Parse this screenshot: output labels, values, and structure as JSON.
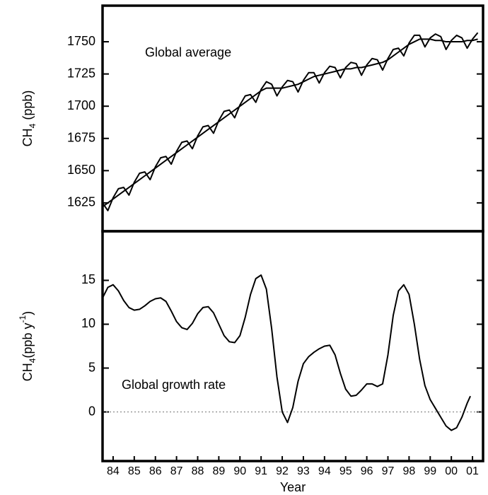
{
  "chart_data": [
    {
      "type": "line",
      "annotation": "Global average",
      "ylabel_parts": [
        {
          "text": "CH"
        },
        {
          "text": "4",
          "sub": true
        },
        {
          "text": " (ppb)"
        }
      ],
      "xlim": [
        1984,
        2002
      ],
      "ylim": [
        1603,
        1778
      ],
      "yticks": [
        1625,
        1650,
        1675,
        1700,
        1725,
        1750
      ],
      "x": [
        1984,
        1984.25,
        1984.5,
        1984.75,
        1985,
        1985.25,
        1985.5,
        1985.75,
        1986,
        1986.25,
        1986.5,
        1986.75,
        1987,
        1987.25,
        1987.5,
        1987.75,
        1988,
        1988.25,
        1988.5,
        1988.75,
        1989,
        1989.25,
        1989.5,
        1989.75,
        1990,
        1990.25,
        1990.5,
        1990.75,
        1991,
        1991.25,
        1991.5,
        1991.75,
        1992,
        1992.25,
        1992.5,
        1992.75,
        1993,
        1993.25,
        1993.5,
        1993.75,
        1994,
        1994.25,
        1994.5,
        1994.75,
        1995,
        1995.25,
        1995.5,
        1995.75,
        1996,
        1996.25,
        1996.5,
        1996.75,
        1997,
        1997.25,
        1997.5,
        1997.75,
        1998,
        1998.25,
        1998.5,
        1998.75,
        1999,
        1999.25,
        1999.5,
        1999.75,
        2000,
        2000.25,
        2000.5,
        2000.75,
        2001,
        2001.25,
        2001.5,
        2001.75
      ],
      "series": [
        {
          "color": "#000000",
          "values": [
            1625,
            1619,
            1629,
            1636,
            1637,
            1631,
            1641,
            1648,
            1649,
            1643,
            1653,
            1660,
            1661,
            1655,
            1665,
            1672,
            1673,
            1667,
            1677,
            1684,
            1685,
            1679,
            1689,
            1696,
            1697,
            1691,
            1701,
            1708,
            1709,
            1703,
            1713,
            1719,
            1717,
            1708,
            1715,
            1720,
            1719,
            1711,
            1720,
            1726,
            1726,
            1718,
            1726,
            1731,
            1730,
            1722,
            1730,
            1734,
            1733,
            1724,
            1732,
            1737,
            1736,
            1728,
            1737,
            1744,
            1745,
            1739,
            1749,
            1755,
            1755,
            1746,
            1753,
            1756,
            1754,
            1744,
            1751,
            1755,
            1753,
            1745,
            1752,
            1757
          ]
        },
        {
          "color": "#000000",
          "values": [
            1622,
            1625,
            1628,
            1631,
            1634,
            1637,
            1640,
            1643,
            1646,
            1649,
            1652,
            1655,
            1658,
            1661,
            1664,
            1667,
            1670,
            1673,
            1676,
            1679,
            1682,
            1685,
            1688,
            1691,
            1694,
            1697,
            1700,
            1703,
            1706,
            1709,
            1712,
            1714,
            1714,
            1714,
            1714,
            1715,
            1716,
            1717,
            1719,
            1721,
            1723,
            1724,
            1725,
            1726,
            1727,
            1728,
            1729,
            1729,
            1730,
            1730,
            1731,
            1732,
            1733,
            1734,
            1736,
            1739,
            1742,
            1745,
            1748,
            1750,
            1752,
            1752,
            1752,
            1751,
            1751,
            1750,
            1750,
            1750,
            1750,
            1751,
            1751,
            1752
          ]
        }
      ]
    },
    {
      "type": "line",
      "annotation": "Global growth rate",
      "ylabel_parts": [
        {
          "text": "CH"
        },
        {
          "text": "4",
          "sub": true
        },
        {
          "text": "(ppb y"
        },
        {
          "text": "-1",
          "sup": true
        },
        {
          "text": ")"
        }
      ],
      "xlabel": "Year",
      "xlim": [
        1984,
        2002
      ],
      "ylim": [
        -5.6,
        20.6
      ],
      "yticks": [
        0,
        5,
        10,
        15
      ],
      "zero_line": true,
      "xticks": [
        {
          "value": 1984.5,
          "label": "84"
        },
        {
          "value": 1985.5,
          "label": "85"
        },
        {
          "value": 1986.5,
          "label": "86"
        },
        {
          "value": 1987.5,
          "label": "87"
        },
        {
          "value": 1988.5,
          "label": "88"
        },
        {
          "value": 1989.5,
          "label": "89"
        },
        {
          "value": 1990.5,
          "label": "90"
        },
        {
          "value": 1991.5,
          "label": "91"
        },
        {
          "value": 1992.5,
          "label": "92"
        },
        {
          "value": 1993.5,
          "label": "93"
        },
        {
          "value": 1994.5,
          "label": "94"
        },
        {
          "value": 1995.5,
          "label": "95"
        },
        {
          "value": 1996.5,
          "label": "96"
        },
        {
          "value": 1997.5,
          "label": "97"
        },
        {
          "value": 1998.5,
          "label": "98"
        },
        {
          "value": 1999.5,
          "label": "99"
        },
        {
          "value": 2000.5,
          "label": "00"
        },
        {
          "value": 2001.5,
          "label": "01"
        }
      ],
      "x": [
        1984,
        1984.25,
        1984.5,
        1984.75,
        1985,
        1985.25,
        1985.5,
        1985.75,
        1986,
        1986.25,
        1986.5,
        1986.75,
        1987,
        1987.25,
        1987.5,
        1987.75,
        1988,
        1988.25,
        1988.5,
        1988.75,
        1989,
        1989.25,
        1989.5,
        1989.75,
        1990,
        1990.25,
        1990.5,
        1990.75,
        1991,
        1991.25,
        1991.5,
        1991.75,
        1992,
        1992.25,
        1992.5,
        1992.75,
        1993,
        1993.25,
        1993.5,
        1993.75,
        1994,
        1994.25,
        1994.5,
        1994.75,
        1995,
        1995.25,
        1995.5,
        1995.75,
        1996,
        1996.25,
        1996.5,
        1996.75,
        1997,
        1997.25,
        1997.5,
        1997.75,
        1998,
        1998.25,
        1998.5,
        1998.75,
        1999,
        1999.25,
        1999.5,
        1999.75,
        2000,
        2000.25,
        2000.5,
        2000.75,
        2001,
        2001.25,
        2001.4
      ],
      "series": [
        {
          "color": "#000000",
          "values": [
            13.0,
            14.2,
            14.5,
            13.8,
            12.7,
            11.9,
            11.6,
            11.7,
            12.1,
            12.6,
            12.9,
            13.0,
            12.6,
            11.5,
            10.3,
            9.6,
            9.4,
            10.1,
            11.2,
            11.9,
            12.0,
            11.3,
            10.0,
            8.7,
            8.0,
            7.9,
            8.7,
            10.8,
            13.4,
            15.2,
            15.6,
            14.0,
            9.5,
            4.0,
            0.0,
            -1.2,
            0.5,
            3.5,
            5.5,
            6.3,
            6.8,
            7.2,
            7.5,
            7.6,
            6.5,
            4.4,
            2.6,
            1.8,
            1.9,
            2.5,
            3.2,
            3.2,
            2.9,
            3.2,
            6.5,
            11.0,
            13.8,
            14.5,
            13.4,
            10.0,
            6.0,
            3.0,
            1.4,
            0.4,
            -0.6,
            -1.6,
            -2.1,
            -1.8,
            -0.6,
            1.0,
            1.8
          ]
        }
      ]
    }
  ]
}
